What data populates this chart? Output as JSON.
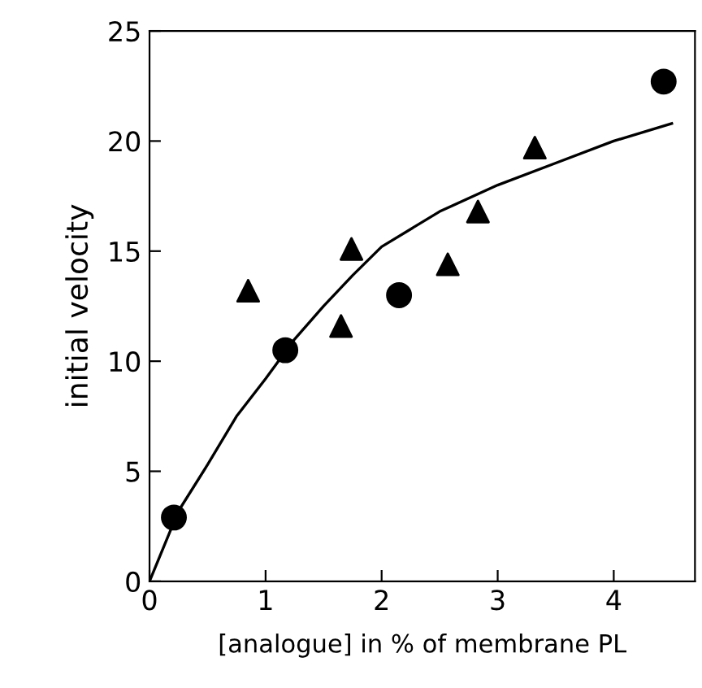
{
  "chart_data": {
    "type": "scatter",
    "xlabel": "[analogue] in % of membrane PL",
    "ylabel": "initial velocity",
    "xlim": [
      0,
      4.7
    ],
    "ylim": [
      0,
      25
    ],
    "xticks": [
      0,
      1,
      2,
      3,
      4
    ],
    "yticks": [
      0,
      5,
      10,
      15,
      20,
      25
    ],
    "grid": false,
    "legend": false,
    "series": [
      {
        "marker": "circle",
        "color": "#000000",
        "x": [
          0.21,
          1.17,
          2.15,
          4.43
        ],
        "values": [
          2.9,
          10.5,
          13.0,
          22.7
        ]
      },
      {
        "marker": "triangle",
        "color": "#000000",
        "x": [
          0.85,
          1.65,
          1.74,
          2.57,
          2.83,
          3.32
        ],
        "values": [
          13.2,
          11.6,
          15.1,
          14.4,
          16.8,
          19.7
        ]
      },
      {
        "type": "line",
        "marker": "none",
        "line_style": "solid",
        "color": "#000000",
        "x": [
          0,
          0.25,
          0.5,
          0.75,
          1,
          1.25,
          1.5,
          1.75,
          2,
          2.5,
          3,
          3.5,
          4,
          4.5
        ],
        "values": [
          0,
          3.2,
          5.3,
          7.5,
          9.2,
          11.0,
          12.5,
          13.9,
          15.2,
          16.8,
          18.0,
          19.0,
          20.0,
          20.8
        ]
      }
    ]
  }
}
